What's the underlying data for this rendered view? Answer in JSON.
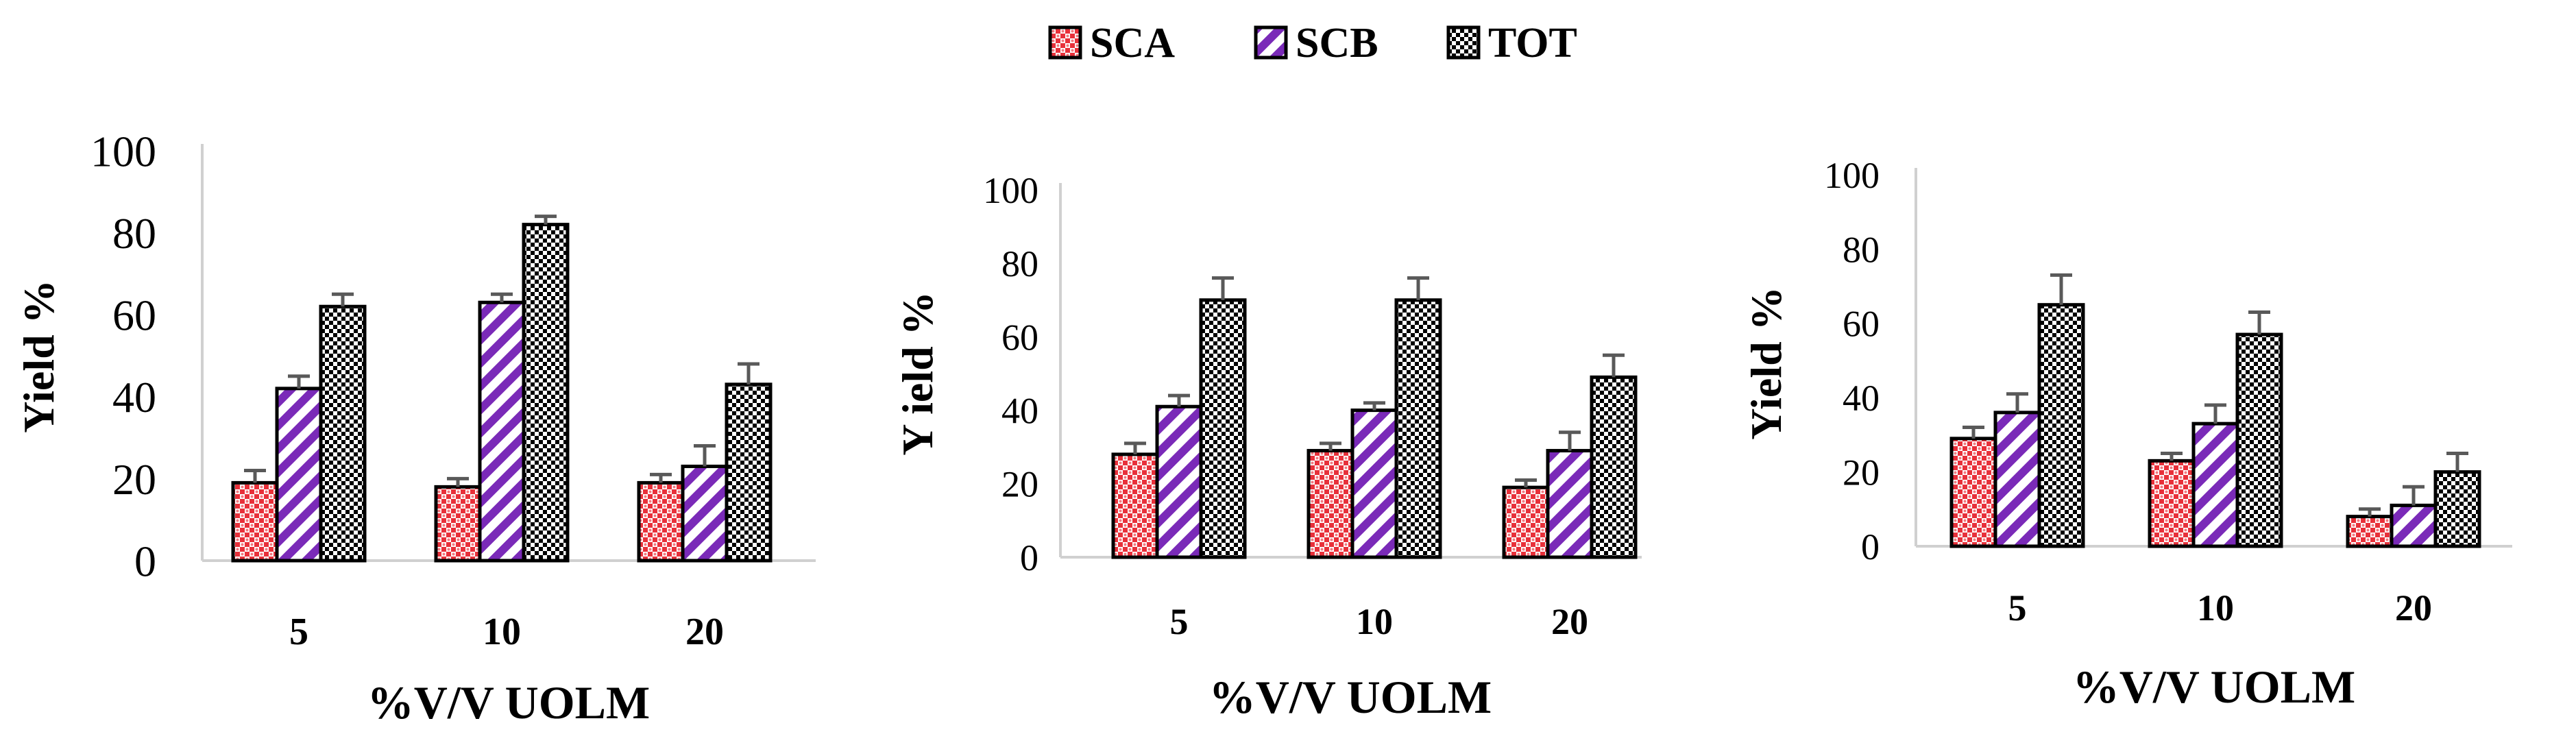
{
  "legend": {
    "items": [
      {
        "name": "SCA",
        "pattern": "dots",
        "color": "#e8303a",
        "bg": "#ffffff"
      },
      {
        "name": "SCB",
        "pattern": "stripes",
        "color": "#7a2ab8",
        "bg": "#ffffff"
      },
      {
        "name": "TOT",
        "pattern": "checker",
        "color": "#000000",
        "bg": "#ffffff"
      }
    ]
  },
  "chart_data": [
    {
      "type": "bar",
      "categories": [
        "5",
        "10",
        "20"
      ],
      "xlabel": "%V/V UOLM",
      "ylabel": "Yield %",
      "ylim": [
        0,
        100
      ],
      "yticks": [
        "0",
        "20",
        "40",
        "60",
        "80",
        "100"
      ],
      "series": [
        {
          "name": "SCA",
          "values": [
            19,
            18,
            19
          ],
          "errors": [
            3,
            2,
            2
          ]
        },
        {
          "name": "SCB",
          "values": [
            42,
            63,
            23
          ],
          "errors": [
            3,
            2,
            5
          ]
        },
        {
          "name": "TOT",
          "values": [
            62,
            82,
            43
          ],
          "errors": [
            3,
            2,
            5
          ]
        }
      ]
    },
    {
      "type": "bar",
      "categories": [
        "5",
        "10",
        "20"
      ],
      "xlabel": "%V/V UOLM",
      "ylabel": "Y ield %",
      "ylim": [
        0,
        100
      ],
      "yticks": [
        "0",
        "20",
        "40",
        "60",
        "80",
        "100"
      ],
      "series": [
        {
          "name": "SCA",
          "values": [
            28,
            29,
            19
          ],
          "errors": [
            3,
            2,
            2
          ]
        },
        {
          "name": "SCB",
          "values": [
            41,
            40,
            29
          ],
          "errors": [
            3,
            2,
            5
          ]
        },
        {
          "name": "TOT",
          "values": [
            70,
            70,
            49
          ],
          "errors": [
            6,
            6,
            6
          ]
        }
      ]
    },
    {
      "type": "bar",
      "categories": [
        "5",
        "10",
        "20"
      ],
      "xlabel": "%V/V UOLM",
      "ylabel": "Yield %",
      "ylim": [
        0,
        100
      ],
      "yticks": [
        "0",
        "20",
        "40",
        "60",
        "80",
        "100"
      ],
      "series": [
        {
          "name": "SCA",
          "values": [
            29,
            23,
            8
          ],
          "errors": [
            3,
            2,
            2
          ]
        },
        {
          "name": "SCB",
          "values": [
            36,
            33,
            11
          ],
          "errors": [
            5,
            5,
            5
          ]
        },
        {
          "name": "TOT",
          "values": [
            65,
            57,
            20
          ],
          "errors": [
            8,
            6,
            5
          ]
        }
      ]
    }
  ]
}
